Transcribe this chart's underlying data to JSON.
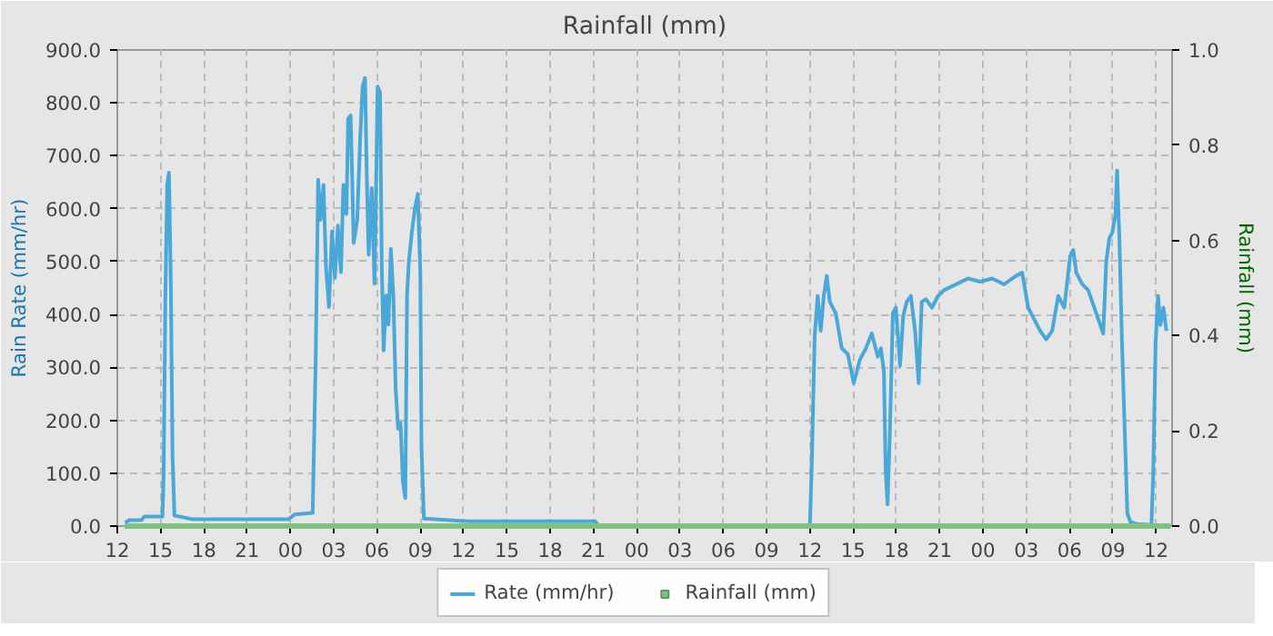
{
  "chart_data": {
    "type": "line",
    "title": "Rainfall (mm)",
    "ylabel": "Rain Rate (mm/hr)",
    "y2label": "Rainfall (mm)",
    "xlim": [
      12,
      85.1
    ],
    "xticks": [
      12,
      15,
      18,
      21,
      {
        "value": 24,
        "label": "00"
      },
      {
        "value": 27,
        "label": "03"
      },
      {
        "value": 30,
        "label": "06"
      },
      {
        "value": 33,
        "label": "09"
      },
      {
        "value": 36,
        "label": "12"
      },
      {
        "value": 39,
        "label": "15"
      },
      {
        "value": 42,
        "label": "18"
      },
      {
        "value": 45,
        "label": "21"
      },
      {
        "value": 48,
        "label": "00"
      },
      {
        "value": 51,
        "label": "03"
      },
      {
        "value": 54,
        "label": "06"
      },
      {
        "value": 57,
        "label": "09"
      },
      {
        "value": 60,
        "label": "12"
      },
      {
        "value": 63,
        "label": "15"
      },
      {
        "value": 66,
        "label": "18"
      },
      {
        "value": 69,
        "label": "21"
      },
      {
        "value": 72,
        "label": "00"
      },
      {
        "value": 75,
        "label": "03"
      },
      {
        "value": 78,
        "label": "06"
      },
      {
        "value": 81,
        "label": "09"
      },
      {
        "value": 84,
        "label": "12"
      }
    ],
    "ylim": [
      0,
      900
    ],
    "yticks": [
      {
        "value": 0,
        "label": "0.0"
      },
      {
        "value": 100,
        "label": "100.0"
      },
      {
        "value": 200,
        "label": "200.0"
      },
      {
        "value": 300,
        "label": "300.0"
      },
      {
        "value": 400,
        "label": "400.0"
      },
      {
        "value": 500,
        "label": "500.0"
      },
      {
        "value": 600,
        "label": "600.0"
      },
      {
        "value": 700,
        "label": "700.0"
      },
      {
        "value": 800,
        "label": "800.0"
      },
      {
        "value": 900,
        "label": "900.0"
      }
    ],
    "y2lim": [
      0,
      1
    ],
    "y2ticks": [
      {
        "value": 0,
        "label": "0.0"
      },
      {
        "value": 0.2,
        "label": "0.2"
      },
      {
        "value": 0.4,
        "label": "0.4"
      },
      {
        "value": 0.6,
        "label": "0.6"
      },
      {
        "value": 0.8,
        "label": "0.8"
      },
      {
        "value": 1,
        "label": "1.0"
      }
    ],
    "grid": true,
    "legend": "bottom",
    "series": [
      {
        "name": "Rate (mm/hr)",
        "color": "#4aa8d8",
        "x": [
          12.54,
          12.83,
          13.67,
          13.88,
          15.13,
          15.21,
          15.33,
          15.46,
          15.58,
          15.71,
          15.83,
          15.96,
          17.21,
          23.88,
          24.29,
          25.54,
          25.75,
          25.92,
          26.08,
          26.29,
          26.46,
          26.67,
          26.88,
          27.08,
          27.29,
          27.5,
          27.67,
          27.88,
          28.0,
          28.17,
          28.29,
          28.38,
          28.63,
          28.83,
          29.0,
          29.17,
          29.29,
          29.42,
          29.63,
          29.83,
          30.04,
          30.21,
          30.33,
          30.46,
          30.63,
          30.79,
          30.96,
          31.13,
          31.29,
          31.46,
          31.63,
          31.79,
          31.96,
          32.08,
          32.21,
          32.42,
          32.63,
          32.83,
          33.0,
          33.08,
          33.25,
          36.38,
          45.13,
          45.33,
          60.0,
          60.13,
          60.33,
          60.54,
          60.75,
          60.96,
          61.17,
          61.38,
          61.79,
          62.21,
          62.63,
          63.04,
          63.46,
          63.88,
          64.29,
          64.71,
          64.92,
          65.13,
          65.25,
          65.38,
          65.54,
          65.75,
          65.96,
          66.25,
          66.46,
          66.71,
          67.0,
          67.29,
          67.54,
          67.75,
          68.04,
          68.46,
          68.88,
          69.29,
          70.13,
          70.96,
          71.79,
          72.63,
          73.46,
          74.29,
          74.71,
          75.13,
          75.54,
          75.96,
          76.38,
          76.79,
          77.21,
          77.63,
          78.04,
          78.25,
          78.46,
          78.88,
          79.29,
          79.71,
          80.13,
          80.33,
          80.54,
          80.75,
          80.96,
          81.17,
          81.29,
          81.46,
          81.63,
          81.79,
          82.0,
          82.21,
          82.63,
          83.67,
          83.79,
          83.96,
          84.13,
          84.29,
          84.5,
          84.71
        ],
        "values": [
          7,
          11,
          11,
          18,
          18,
          96,
          430,
          645,
          668,
          458,
          130,
          20,
          13,
          13,
          22,
          25,
          316,
          655,
          579,
          645,
          491,
          414,
          557,
          469,
          568,
          480,
          645,
          590,
          770,
          776,
          645,
          535,
          579,
          732,
          831,
          847,
          661,
          513,
          639,
          458,
          831,
          820,
          491,
          332,
          436,
          381,
          524,
          436,
          261,
          184,
          195,
          85,
          53,
          436,
          502,
          557,
          601,
          628,
          480,
          151,
          14,
          9,
          9,
          1,
          1,
          117,
          358,
          435,
          369,
          435,
          473,
          424,
          402,
          336,
          325,
          270,
          314,
          336,
          364,
          320,
          336,
          292,
          106,
          41,
          172,
          402,
          413,
          303,
          396,
          424,
          435,
          369,
          270,
          424,
          429,
          413,
          435,
          446,
          457,
          468,
          462,
          468,
          457,
          473,
          479,
          413,
          391,
          369,
          353,
          369,
          435,
          413,
          511,
          522,
          479,
          457,
          446,
          413,
          380,
          364,
          500,
          544,
          555,
          588,
          672,
          533,
          347,
          205,
          24,
          8,
          4,
          2,
          95,
          347,
          435,
          380,
          413,
          369
        ]
      },
      {
        "name": "Rainfall (mm)",
        "color": "#80c080",
        "type": "line",
        "axis": "y2",
        "x": [
          12.5,
          85.0
        ],
        "values": [
          0,
          0
        ]
      }
    ]
  }
}
